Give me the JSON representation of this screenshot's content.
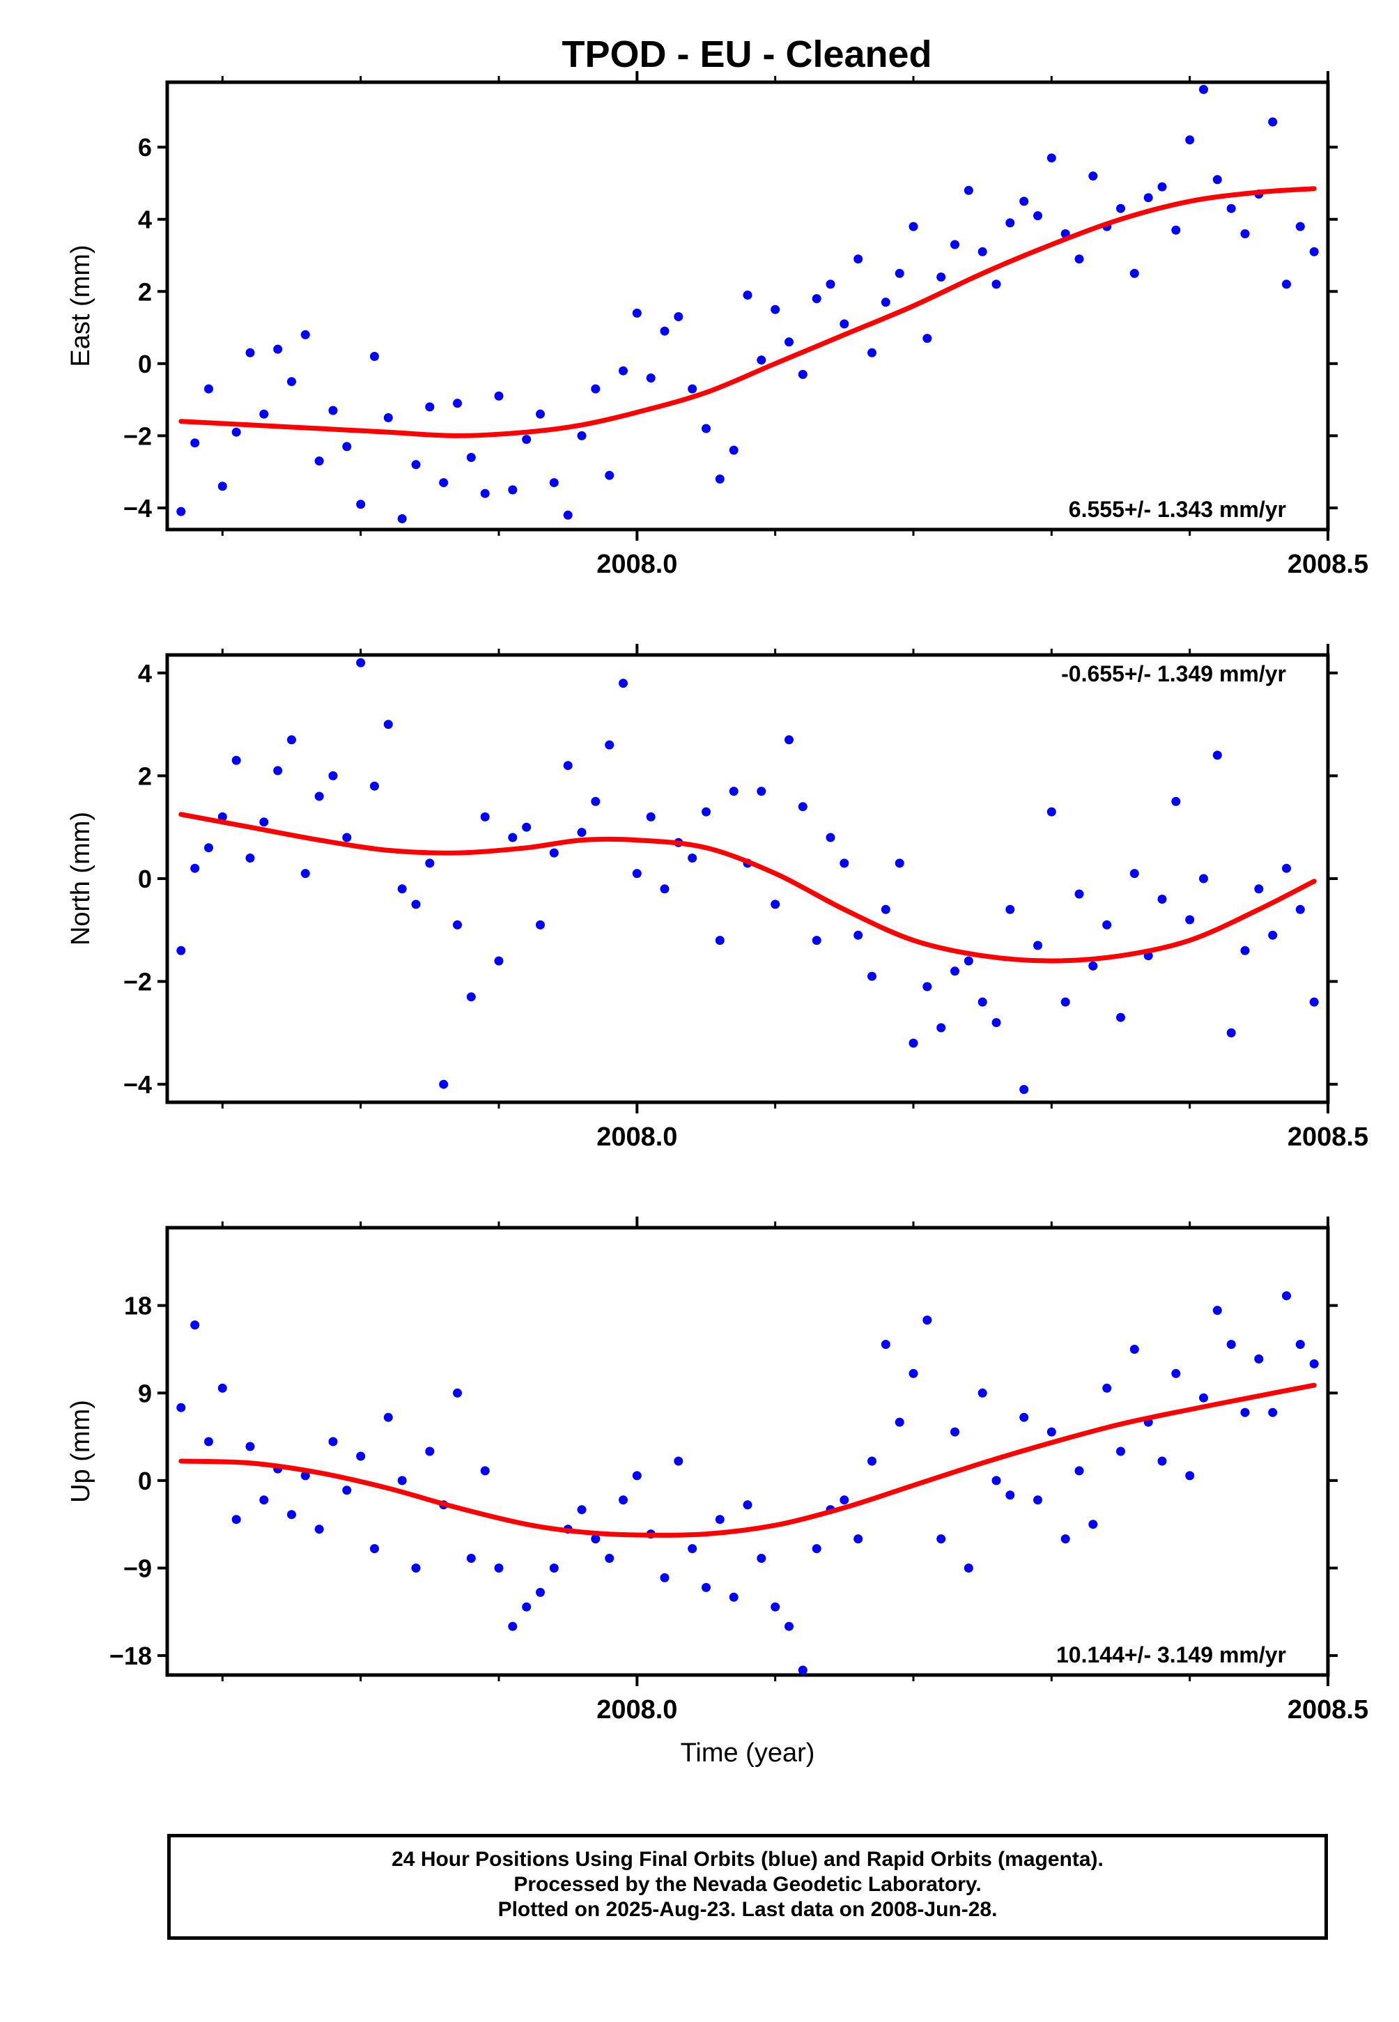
{
  "title": "TPOD  - EU - Cleaned",
  "colors": {
    "points": "#0000ff",
    "fit": "#ff0000",
    "axes": "#000000"
  },
  "caption": [
    "24 Hour Positions Using Final Orbits (blue) and Rapid Orbits (magenta).",
    "Processed by the Nevada Geodetic Laboratory.",
    "Plotted on 2025-Aug-23. Last data on 2008-Jun-28."
  ],
  "chart_data": [
    {
      "type": "scatter",
      "ylabel": "East (mm)",
      "xlabel": "",
      "rate_label": "6.555+/- 1.343 mm/yr",
      "xlim": [
        2007.66,
        2008.5
      ],
      "ylim": [
        -4.6,
        7.8
      ],
      "xticks": [
        2008.0,
        2008.5
      ],
      "xtick_labels": [
        "2008.0",
        "2008.5"
      ],
      "yticks": [
        -4,
        -2,
        0,
        2,
        4,
        6
      ],
      "ytick_labels": [
        "−4",
        "−2",
        "0",
        "2",
        "4",
        "6"
      ],
      "series": [
        {
          "kind": "points",
          "x": [
            2007.67,
            2007.68,
            2007.69,
            2007.7,
            2007.71,
            2007.72,
            2007.73,
            2007.74,
            2007.75,
            2007.76,
            2007.77,
            2007.78,
            2007.79,
            2007.8,
            2007.81,
            2007.82,
            2007.83,
            2007.84,
            2007.85,
            2007.86,
            2007.87,
            2007.88,
            2007.89,
            2007.9,
            2007.91,
            2007.92,
            2007.93,
            2007.94,
            2007.95,
            2007.96,
            2007.97,
            2007.98,
            2007.99,
            2008.0,
            2008.01,
            2008.02,
            2008.03,
            2008.04,
            2008.05,
            2008.06,
            2008.07,
            2008.08,
            2008.09,
            2008.1,
            2008.11,
            2008.12,
            2008.13,
            2008.14,
            2008.15,
            2008.16,
            2008.17,
            2008.18,
            2008.19,
            2008.2,
            2008.21,
            2008.22,
            2008.23,
            2008.24,
            2008.25,
            2008.26,
            2008.27,
            2008.28,
            2008.29,
            2008.3,
            2008.31,
            2008.32,
            2008.33,
            2008.34,
            2008.35,
            2008.36,
            2008.37,
            2008.38,
            2008.39,
            2008.4,
            2008.41,
            2008.42,
            2008.43,
            2008.44,
            2008.45,
            2008.46,
            2008.47,
            2008.48,
            2008.49
          ],
          "y": [
            -4.1,
            -2.2,
            -0.7,
            -3.4,
            -1.9,
            0.3,
            -1.4,
            0.4,
            -0.5,
            0.8,
            -2.7,
            -1.3,
            -2.3,
            -3.9,
            0.2,
            -1.5,
            -4.3,
            -2.8,
            -1.2,
            -3.3,
            -1.1,
            -2.6,
            -3.6,
            -0.9,
            -3.5,
            -2.1,
            -1.4,
            -3.3,
            -4.2,
            -2.0,
            -0.7,
            -3.1,
            -0.2,
            1.4,
            -0.4,
            0.9,
            1.3,
            -0.7,
            -1.8,
            -3.2,
            -2.4,
            1.9,
            0.1,
            1.5,
            0.6,
            -0.3,
            1.8,
            2.2,
            1.1,
            2.9,
            0.3,
            1.7,
            2.5,
            3.8,
            0.7,
            2.4,
            3.3,
            4.8,
            3.1,
            2.2,
            3.9,
            4.5,
            4.1,
            5.7,
            3.6,
            2.9,
            5.2,
            3.8,
            4.3,
            2.5,
            4.6,
            4.9,
            3.7,
            6.2,
            7.6,
            5.1,
            4.3,
            3.6,
            4.7,
            6.7,
            2.2,
            3.8,
            3.1
          ]
        },
        {
          "kind": "fit",
          "x": [
            2007.67,
            2007.72,
            2007.77,
            2007.82,
            2007.87,
            2007.92,
            2007.96,
            2008.0,
            2008.05,
            2008.1,
            2008.15,
            2008.2,
            2008.25,
            2008.3,
            2008.35,
            2008.4,
            2008.45,
            2008.49
          ],
          "y": [
            -1.6,
            -1.7,
            -1.8,
            -1.9,
            -2.0,
            -1.9,
            -1.7,
            -1.35,
            -0.8,
            0.0,
            0.8,
            1.6,
            2.5,
            3.3,
            4.0,
            4.5,
            4.75,
            4.85
          ]
        }
      ]
    },
    {
      "type": "scatter",
      "ylabel": "North (mm)",
      "xlabel": "",
      "rate_label": "-0.655+/- 1.349 mm/yr",
      "xlim": [
        2007.66,
        2008.5
      ],
      "ylim": [
        -4.35,
        4.35
      ],
      "xticks": [
        2008.0,
        2008.5
      ],
      "xtick_labels": [
        "2008.0",
        "2008.5"
      ],
      "yticks": [
        -4,
        -2,
        0,
        2,
        4
      ],
      "ytick_labels": [
        "−4",
        "−2",
        "0",
        "2",
        "4"
      ],
      "series": [
        {
          "kind": "points",
          "x": [
            2007.67,
            2007.68,
            2007.69,
            2007.7,
            2007.71,
            2007.72,
            2007.73,
            2007.74,
            2007.75,
            2007.76,
            2007.77,
            2007.78,
            2007.79,
            2007.8,
            2007.81,
            2007.82,
            2007.83,
            2007.84,
            2007.85,
            2007.86,
            2007.87,
            2007.88,
            2007.89,
            2007.9,
            2007.91,
            2007.92,
            2007.93,
            2007.94,
            2007.95,
            2007.96,
            2007.97,
            2007.98,
            2007.99,
            2008.0,
            2008.01,
            2008.02,
            2008.03,
            2008.04,
            2008.05,
            2008.06,
            2008.07,
            2008.08,
            2008.09,
            2008.1,
            2008.11,
            2008.12,
            2008.13,
            2008.14,
            2008.15,
            2008.16,
            2008.17,
            2008.18,
            2008.19,
            2008.2,
            2008.21,
            2008.22,
            2008.23,
            2008.24,
            2008.25,
            2008.26,
            2008.27,
            2008.28,
            2008.29,
            2008.3,
            2008.31,
            2008.32,
            2008.33,
            2008.34,
            2008.35,
            2008.36,
            2008.37,
            2008.38,
            2008.39,
            2008.4,
            2008.41,
            2008.42,
            2008.43,
            2008.44,
            2008.45,
            2008.46,
            2008.47,
            2008.48,
            2008.49
          ],
          "y": [
            -1.4,
            0.2,
            0.6,
            1.2,
            2.3,
            0.4,
            1.1,
            2.1,
            2.7,
            0.1,
            1.6,
            2.0,
            0.8,
            4.2,
            1.8,
            3.0,
            -0.2,
            -0.5,
            0.3,
            -4.0,
            -0.9,
            -2.3,
            1.2,
            -1.6,
            0.8,
            1.0,
            -0.9,
            0.5,
            2.2,
            0.9,
            1.5,
            2.6,
            3.8,
            0.1,
            1.2,
            -0.2,
            0.7,
            0.4,
            1.3,
            -1.2,
            1.7,
            0.3,
            1.7,
            -0.5,
            2.7,
            1.4,
            -1.2,
            0.8,
            0.3,
            -1.1,
            -1.9,
            -0.6,
            0.3,
            -3.2,
            -2.1,
            -2.9,
            -1.8,
            -1.6,
            -2.4,
            -2.8,
            -0.6,
            -4.1,
            -1.3,
            1.3,
            -2.4,
            -0.3,
            -1.7,
            -0.9,
            -2.7,
            0.1,
            -1.5,
            -0.4,
            1.5,
            -0.8,
            0.0,
            2.4,
            -3.0,
            -1.4,
            -0.2,
            -1.1,
            0.2,
            -0.6,
            -2.4
          ]
        },
        {
          "kind": "fit",
          "x": [
            2007.67,
            2007.72,
            2007.77,
            2007.82,
            2007.87,
            2007.92,
            2007.96,
            2008.0,
            2008.05,
            2008.1,
            2008.15,
            2008.2,
            2008.25,
            2008.3,
            2008.35,
            2008.4,
            2008.45,
            2008.49
          ],
          "y": [
            1.25,
            1.0,
            0.75,
            0.55,
            0.5,
            0.6,
            0.75,
            0.75,
            0.6,
            0.1,
            -0.6,
            -1.2,
            -1.5,
            -1.6,
            -1.5,
            -1.2,
            -0.6,
            -0.05
          ]
        }
      ]
    },
    {
      "type": "scatter",
      "ylabel": "Up (mm)",
      "xlabel": "Time (year)",
      "rate_label": "10.144+/- 3.149 mm/yr",
      "xlim": [
        2007.66,
        2008.5
      ],
      "ylim": [
        -20,
        26
      ],
      "xticks": [
        2008.0,
        2008.5
      ],
      "xtick_labels": [
        "2008.0",
        "2008.5"
      ],
      "yticks": [
        -18,
        -9,
        0,
        9,
        18
      ],
      "ytick_labels": [
        "−18",
        "−9",
        "0",
        "9",
        "18"
      ],
      "series": [
        {
          "kind": "points",
          "x": [
            2007.67,
            2007.68,
            2007.69,
            2007.7,
            2007.71,
            2007.72,
            2007.73,
            2007.74,
            2007.75,
            2007.76,
            2007.77,
            2007.78,
            2007.79,
            2007.8,
            2007.81,
            2007.82,
            2007.83,
            2007.84,
            2007.85,
            2007.86,
            2007.87,
            2007.88,
            2007.89,
            2007.9,
            2007.91,
            2007.92,
            2007.93,
            2007.94,
            2007.95,
            2007.96,
            2007.97,
            2007.98,
            2007.99,
            2008.0,
            2008.01,
            2008.02,
            2008.03,
            2008.04,
            2008.05,
            2008.06,
            2008.07,
            2008.08,
            2008.09,
            2008.1,
            2008.11,
            2008.12,
            2008.13,
            2008.14,
            2008.15,
            2008.16,
            2008.17,
            2008.18,
            2008.19,
            2008.2,
            2008.21,
            2008.22,
            2008.23,
            2008.24,
            2008.25,
            2008.26,
            2008.27,
            2008.28,
            2008.29,
            2008.3,
            2008.31,
            2008.32,
            2008.33,
            2008.34,
            2008.35,
            2008.36,
            2008.37,
            2008.38,
            2008.39,
            2008.4,
            2008.41,
            2008.42,
            2008.43,
            2008.44,
            2008.45,
            2008.46,
            2008.47,
            2008.48,
            2008.49
          ],
          "y": [
            7.5,
            16.0,
            4.0,
            9.5,
            -4.0,
            3.5,
            -2.0,
            1.2,
            -3.5,
            0.5,
            -5.0,
            4.0,
            -1.0,
            2.5,
            -7.0,
            6.5,
            0.0,
            -9.0,
            3.0,
            -2.5,
            9.0,
            -8.0,
            1.0,
            -9.0,
            -15.0,
            -13.0,
            -11.5,
            -9.0,
            -5.0,
            -3.0,
            -6.0,
            -8.0,
            -2.0,
            0.5,
            -5.5,
            -10.0,
            2.0,
            -7.0,
            -11.0,
            -4.0,
            -12.0,
            -2.5,
            -8.0,
            -13.0,
            -15.0,
            -19.5,
            -7.0,
            -3.0,
            -2.0,
            -6.0,
            2.0,
            14.0,
            6.0,
            11.0,
            16.5,
            -6.0,
            5.0,
            -9.0,
            9.0,
            0.0,
            -1.5,
            6.5,
            -2.0,
            5.0,
            -6.0,
            1.0,
            -4.5,
            9.5,
            3.0,
            13.5,
            6.0,
            2.0,
            11.0,
            0.5,
            8.5,
            17.5,
            14.0,
            7.0,
            12.5,
            7.0,
            19.0,
            14.0,
            12.0
          ]
        },
        {
          "kind": "fit",
          "x": [
            2007.67,
            2007.72,
            2007.77,
            2007.82,
            2007.87,
            2007.92,
            2007.96,
            2008.0,
            2008.05,
            2008.1,
            2008.15,
            2008.2,
            2008.25,
            2008.3,
            2008.35,
            2008.4,
            2008.45,
            2008.49
          ],
          "y": [
            2.0,
            1.8,
            0.8,
            -0.8,
            -2.8,
            -4.5,
            -5.3,
            -5.6,
            -5.5,
            -4.6,
            -2.8,
            -0.5,
            1.8,
            3.9,
            5.8,
            7.3,
            8.7,
            9.8
          ]
        }
      ]
    }
  ]
}
